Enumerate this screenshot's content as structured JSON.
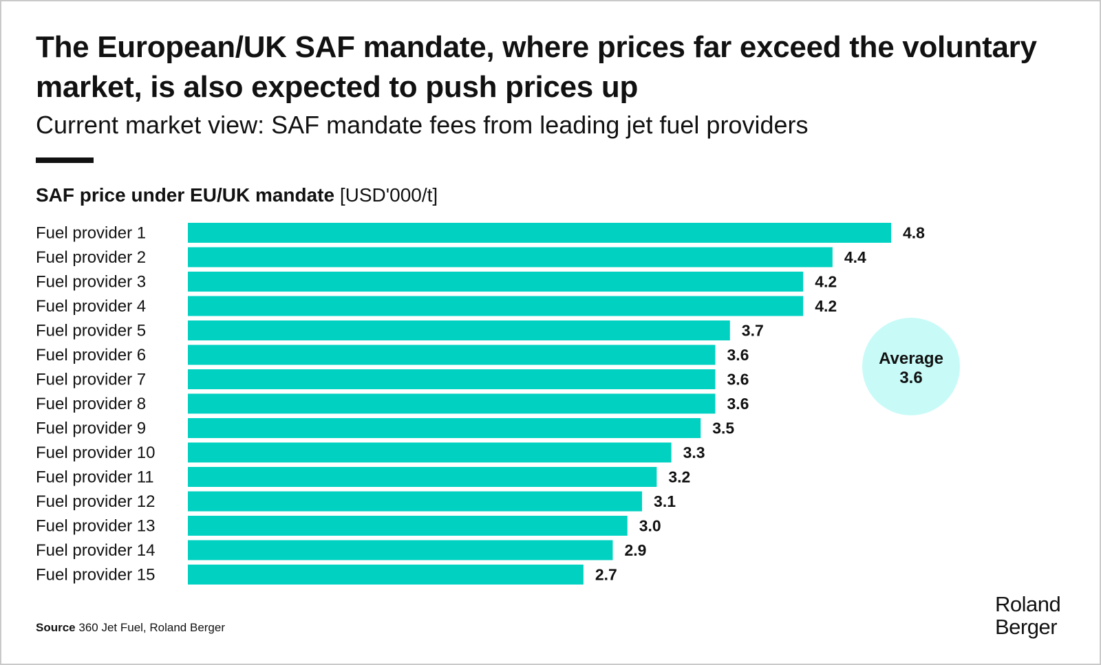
{
  "header": {
    "title": "The European/UK SAF mandate, where prices far exceed the voluntary market, is also expected to push prices up",
    "subtitle": "Current market view: SAF mandate fees from leading jet fuel providers"
  },
  "chart_heading": {
    "bold": "SAF price under EU/UK mandate",
    "unit": "[USD'000/t]"
  },
  "chart_data": {
    "type": "bar",
    "orientation": "horizontal",
    "title": "SAF price under EU/UK mandate",
    "ylabel": "[USD'000/t]",
    "xlabel": "",
    "categories": [
      "Fuel provider 1",
      "Fuel provider 2",
      "Fuel provider 3",
      "Fuel provider 4",
      "Fuel provider 5",
      "Fuel provider 6",
      "Fuel provider 7",
      "Fuel provider 8",
      "Fuel provider 9",
      "Fuel provider 10",
      "Fuel provider 11",
      "Fuel provider 12",
      "Fuel provider 13",
      "Fuel provider 14",
      "Fuel provider 15"
    ],
    "values": [
      4.8,
      4.4,
      4.2,
      4.2,
      3.7,
      3.6,
      3.6,
      3.6,
      3.5,
      3.3,
      3.2,
      3.1,
      3.0,
      2.9,
      2.7
    ],
    "value_labels": [
      "4.8",
      "4.4",
      "4.2",
      "4.2",
      "3.7",
      "3.6",
      "3.6",
      "3.6",
      "3.5",
      "3.3",
      "3.2",
      "3.1",
      "3.0",
      "2.9",
      "2.7"
    ],
    "xlim": [
      0,
      4.8
    ],
    "grid": false,
    "annotation": {
      "label": "Average",
      "value": "3.6"
    },
    "colors": {
      "bar": "#00D1C1",
      "average_bubble": "#C8FBF8"
    }
  },
  "footer": {
    "source_label": "Source",
    "source_text": "360 Jet Fuel, Roland Berger"
  },
  "logo": {
    "line1": "Roland",
    "line2": "Berger"
  }
}
